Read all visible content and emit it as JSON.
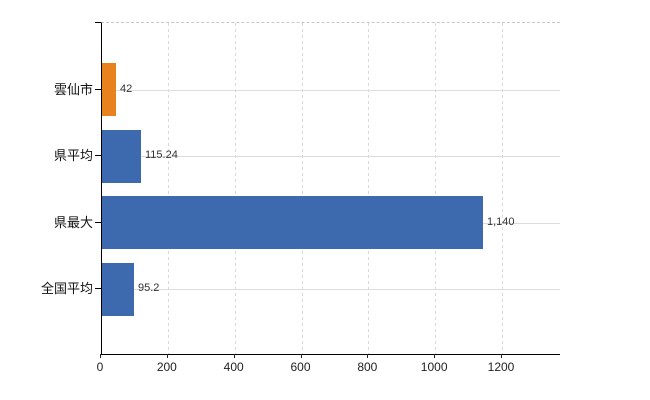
{
  "chart_data": {
    "type": "bar",
    "orientation": "horizontal",
    "title": "",
    "xlabel": "",
    "ylabel": "",
    "categories": [
      "雲仙市",
      "県平均",
      "県最大",
      "全国平均"
    ],
    "values": [
      42,
      115.24,
      1140,
      95.2
    ],
    "value_labels": [
      "42",
      "115.24",
      "1,140",
      "95.2"
    ],
    "bar_colors": [
      "#e8821e",
      "#3d69af",
      "#3d69af",
      "#3d69af"
    ],
    "x_tick_labels": [
      "0",
      "200",
      "400",
      "600",
      "800",
      "1000",
      "1200"
    ],
    "x_tick_values": [
      0,
      200,
      400,
      600,
      800,
      1000,
      1200
    ],
    "xlim": [
      0,
      1370
    ],
    "grid": true,
    "grid_horizontal": "solid",
    "grid_vertical": "dashed",
    "legend": false,
    "colors": {
      "highlight_bar": "#e8821e",
      "default_bar": "#3d69af",
      "axis": "#000000",
      "gridline": "#dadfda",
      "dashed_top_border": "#c8c8c8",
      "value_text": "#333333",
      "tick_text": "#222222",
      "category_text": "#111111",
      "background": "#ffffff"
    }
  }
}
